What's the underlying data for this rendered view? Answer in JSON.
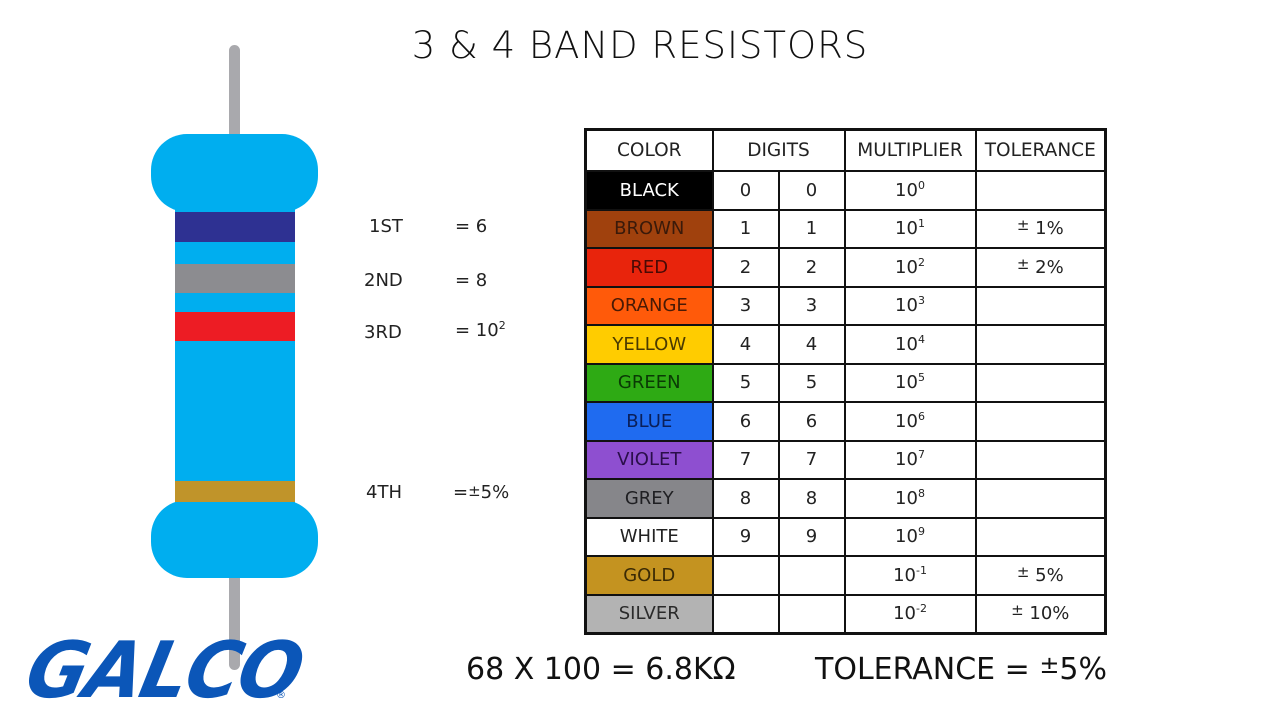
{
  "title": "3 & 4 BAND RESISTORS",
  "resistor": {
    "colors": {
      "body": "#00aeef",
      "lead": "#a9a9ad"
    },
    "bands": [
      {
        "position": "1ST",
        "color": "#2e3192",
        "label": "1ST",
        "value": "= 6"
      },
      {
        "position": "2ND",
        "color": "#8c8c90",
        "label": "2ND",
        "value": "= 8"
      },
      {
        "position": "3RD",
        "color": "#ed1c24",
        "label": "3RD",
        "value_base": "= 10",
        "value_exp": "2"
      },
      {
        "position": "4TH",
        "color": "#c0942a",
        "label": "4TH",
        "value_prefix": "=",
        "value_pm": "±",
        "value_suffix": "5%"
      }
    ]
  },
  "table": {
    "headers": [
      "COLOR",
      "DIGITS",
      "MULTIPLIER",
      "TOLERANCE"
    ],
    "rows": [
      {
        "color": "BLACK",
        "bg": "#000000",
        "fg": "#ffffff",
        "d1": "0",
        "d2": "0",
        "mult_base": "10",
        "mult_exp": "0",
        "tol": ""
      },
      {
        "color": "BROWN",
        "bg": "#a0410d",
        "fg": "#3a1a0a",
        "d1": "1",
        "d2": "1",
        "mult_base": "10",
        "mult_exp": "1",
        "tol": "1%"
      },
      {
        "color": "RED",
        "bg": "#e8240c",
        "fg": "#4a0a05",
        "d1": "2",
        "d2": "2",
        "mult_base": "10",
        "mult_exp": "2",
        "tol": "2%"
      },
      {
        "color": "ORANGE",
        "bg": "#ff5a0a",
        "fg": "#4a1a05",
        "d1": "3",
        "d2": "3",
        "mult_base": "10",
        "mult_exp": "3",
        "tol": ""
      },
      {
        "color": "YELLOW",
        "bg": "#ffcc00",
        "fg": "#4a3a00",
        "d1": "4",
        "d2": "4",
        "mult_base": "10",
        "mult_exp": "4",
        "tol": ""
      },
      {
        "color": "GREEN",
        "bg": "#2eaa14",
        "fg": "#0a3a05",
        "d1": "5",
        "d2": "5",
        "mult_base": "10",
        "mult_exp": "5",
        "tol": ""
      },
      {
        "color": "BLUE",
        "bg": "#1f6bf0",
        "fg": "#0a1f5a",
        "d1": "6",
        "d2": "6",
        "mult_base": "10",
        "mult_exp": "6",
        "tol": ""
      },
      {
        "color": "VIOLET",
        "bg": "#8e4fd0",
        "fg": "#2a0f4a",
        "d1": "7",
        "d2": "7",
        "mult_base": "10",
        "mult_exp": "7",
        "tol": ""
      },
      {
        "color": "GREY",
        "bg": "#86868a",
        "fg": "#1f1f22",
        "d1": "8",
        "d2": "8",
        "mult_base": "10",
        "mult_exp": "8",
        "tol": ""
      },
      {
        "color": "WHITE",
        "bg": "#ffffff",
        "fg": "#222222",
        "d1": "9",
        "d2": "9",
        "mult_base": "10",
        "mult_exp": "9",
        "tol": ""
      },
      {
        "color": "GOLD",
        "bg": "#c49320",
        "fg": "#3a2a05",
        "d1": "",
        "d2": "",
        "mult_base": "10",
        "mult_exp": "-1",
        "tol": "5%"
      },
      {
        "color": "SILVER",
        "bg": "#b3b3b3",
        "fg": "#2a2a2a",
        "d1": "",
        "d2": "",
        "mult_base": "10",
        "mult_exp": "-2",
        "tol": "10%"
      }
    ],
    "pm_symbol": "±"
  },
  "formula": {
    "calc": "68 X 100 = 6.8KΩ",
    "tolerance_label": "TOLERANCE = ",
    "tolerance_pm": "±",
    "tolerance_value": "5%"
  },
  "logo": {
    "text": "GALCO",
    "reg": "®",
    "color": "#0b56b8"
  }
}
